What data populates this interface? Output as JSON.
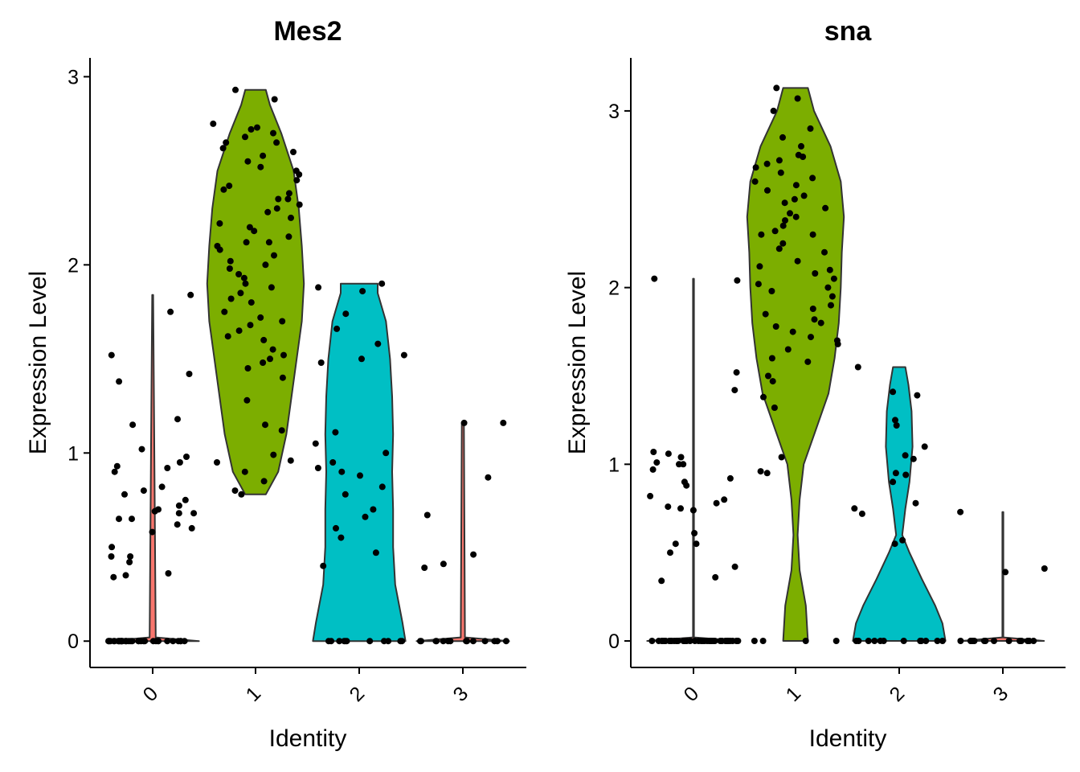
{
  "chart_data": [
    {
      "type": "violin",
      "title": "Mes2",
      "xlabel": "Identity",
      "ylabel": "Expression Level",
      "categories": [
        "0",
        "1",
        "2",
        "3"
      ],
      "yticks": [
        "0",
        "1",
        "2",
        "3"
      ],
      "ylim": [
        -0.14,
        3.1
      ],
      "grid": false,
      "legend": "none",
      "colors": {
        "1": "#7CAE00",
        "2": "#00BFC4"
      },
      "violins": [
        {
          "category": "0",
          "max": 1.84,
          "profile": [
            [
              0.0,
              0.45
            ],
            [
              0.02,
              0.03
            ],
            [
              1.84,
              0.005
            ]
          ]
        },
        {
          "category": "1",
          "max": 2.93,
          "profile": [
            [
              0.78,
              0.1
            ],
            [
              0.9,
              0.22
            ],
            [
              1.1,
              0.3
            ],
            [
              1.3,
              0.35
            ],
            [
              1.5,
              0.4
            ],
            [
              1.7,
              0.45
            ],
            [
              1.9,
              0.47
            ],
            [
              2.1,
              0.45
            ],
            [
              2.3,
              0.42
            ],
            [
              2.5,
              0.37
            ],
            [
              2.7,
              0.25
            ],
            [
              2.85,
              0.14
            ],
            [
              2.93,
              0.1
            ]
          ]
        },
        {
          "category": "2",
          "max": 1.9,
          "profile": [
            [
              0.0,
              0.45
            ],
            [
              0.1,
              0.42
            ],
            [
              0.3,
              0.35
            ],
            [
              0.5,
              0.33
            ],
            [
              0.7,
              0.33
            ],
            [
              0.9,
              0.32
            ],
            [
              1.1,
              0.33
            ],
            [
              1.3,
              0.32
            ],
            [
              1.5,
              0.3
            ],
            [
              1.7,
              0.26
            ],
            [
              1.85,
              0.18
            ],
            [
              1.9,
              0.18
            ]
          ]
        },
        {
          "category": "3",
          "max": 1.16,
          "profile": [
            [
              0.0,
              0.45
            ],
            [
              0.02,
              0.02
            ],
            [
              1.16,
              0.01
            ]
          ]
        }
      ],
      "points": [
        {
          "category": "0",
          "values": [
            0,
            0,
            0,
            0,
            0,
            0,
            0,
            0,
            0,
            0,
            0,
            0,
            0,
            0,
            0,
            0,
            0,
            0,
            0,
            0,
            0,
            0,
            0,
            0,
            0,
            0,
            0,
            0,
            0,
            0,
            0,
            0,
            0,
            0,
            0,
            0,
            1.75,
            1.42,
            1.38,
            1.18,
            1.15,
            1.02,
            0.98,
            0.95,
            0.92,
            0.9,
            0.82,
            0.8,
            0.78,
            0.75,
            0.72,
            0.7,
            0.68,
            0.65,
            0.6,
            0.58,
            0.45,
            0.42,
            0.36,
            0.34,
            1.84,
            1.52,
            0.93,
            0.69,
            0.68,
            0.65,
            0.62,
            0.5,
            0.45,
            0.35
          ]
        },
        {
          "category": "1",
          "values": [
            2.93,
            2.88,
            2.75,
            2.73,
            2.7,
            2.68,
            2.65,
            2.6,
            2.55,
            2.52,
            2.48,
            2.45,
            2.42,
            2.38,
            2.35,
            2.32,
            2.28,
            2.25,
            2.2,
            2.15,
            2.12,
            2.1,
            2.08,
            2.05,
            2.02,
            1.98,
            1.95,
            1.9,
            1.88,
            1.85,
            1.8,
            1.75,
            1.72,
            1.68,
            1.65,
            1.6,
            1.55,
            1.5,
            1.45,
            1.4,
            1.28,
            1.15,
            1.12,
            0.99,
            0.96,
            0.95,
            0.9,
            0.85,
            0.8,
            0.78,
            2.62,
            2.58,
            2.4,
            2.3,
            2.18,
            1.93,
            1.7,
            1.62,
            1.52,
            1.48,
            2.72,
            2.5,
            2.22,
            2.0,
            1.82,
            2.65,
            2.35,
            2.12
          ]
        },
        {
          "category": "2",
          "values": [
            0,
            0,
            0,
            0,
            0,
            0,
            0,
            0,
            0,
            0,
            0,
            1.9,
            1.88,
            1.86,
            1.74,
            1.66,
            1.58,
            1.52,
            1.5,
            1.48,
            1.11,
            1.05,
            1.0,
            0.95,
            0.92,
            0.9,
            0.88,
            0.82,
            0.78,
            0.7,
            0.66,
            0.6,
            0.55,
            0.47,
            0.4
          ]
        },
        {
          "category": "3",
          "values": [
            0,
            0,
            0,
            0,
            0,
            0,
            0,
            0,
            0,
            0,
            0,
            0,
            0,
            0,
            1.16,
            1.16,
            0.87,
            0.67,
            0.46,
            0.41,
            0.39
          ]
        }
      ]
    },
    {
      "type": "violin",
      "title": "sna",
      "xlabel": "Identity",
      "ylabel": "Expression Level",
      "categories": [
        "0",
        "1",
        "2",
        "3"
      ],
      "yticks": [
        "0",
        "1",
        "2",
        "3"
      ],
      "ylim": [
        -0.15,
        3.3
      ],
      "grid": false,
      "legend": "none",
      "colors": {
        "1": "#7CAE00",
        "2": "#00BFC4"
      },
      "violins": [
        {
          "category": "0",
          "max": 2.05,
          "profile": [
            [
              0.0,
              0.45
            ],
            [
              0.02,
              0.005
            ],
            [
              2.05,
              0.005
            ]
          ]
        },
        {
          "category": "1",
          "max": 3.13,
          "profile": [
            [
              0.0,
              0.12
            ],
            [
              0.2,
              0.1
            ],
            [
              0.4,
              0.04
            ],
            [
              0.6,
              0.02
            ],
            [
              0.8,
              0.04
            ],
            [
              1.0,
              0.08
            ],
            [
              1.2,
              0.2
            ],
            [
              1.4,
              0.32
            ],
            [
              1.6,
              0.38
            ],
            [
              1.8,
              0.42
            ],
            [
              2.0,
              0.44
            ],
            [
              2.2,
              0.45
            ],
            [
              2.4,
              0.47
            ],
            [
              2.6,
              0.44
            ],
            [
              2.8,
              0.34
            ],
            [
              3.0,
              0.18
            ],
            [
              3.13,
              0.12
            ]
          ]
        },
        {
          "category": "2",
          "max": 1.55,
          "profile": [
            [
              0.0,
              0.45
            ],
            [
              0.1,
              0.42
            ],
            [
              0.2,
              0.35
            ],
            [
              0.35,
              0.22
            ],
            [
              0.5,
              0.1
            ],
            [
              0.6,
              0.03
            ],
            [
              0.75,
              0.06
            ],
            [
              0.9,
              0.1
            ],
            [
              1.1,
              0.13
            ],
            [
              1.3,
              0.12
            ],
            [
              1.45,
              0.09
            ],
            [
              1.55,
              0.06
            ]
          ]
        },
        {
          "category": "3",
          "max": 0.73,
          "profile": [
            [
              0.0,
              0.4
            ],
            [
              0.02,
              0.005
            ],
            [
              0.73,
              0.005
            ]
          ]
        }
      ],
      "points": [
        {
          "category": "0",
          "values": [
            0,
            0,
            0,
            0,
            0,
            0,
            0,
            0,
            0,
            0,
            0,
            0,
            0,
            0,
            0,
            0,
            0,
            0,
            0,
            0,
            0,
            0,
            0,
            0,
            0,
            0,
            0,
            0,
            0,
            0,
            0,
            0,
            0,
            0,
            0,
            0,
            0,
            0,
            0,
            0,
            2.04,
            1.42,
            1.06,
            1.07,
            1.0,
            0.97,
            0.92,
            0.9,
            0.88,
            0.8,
            0.78,
            0.76,
            0.75,
            0.74,
            0.61,
            0.5,
            0.42,
            0.36,
            0.34,
            2.05,
            1.52,
            1.04,
            1.01,
            1.0,
            0.82,
            0.55,
            0.55
          ]
        },
        {
          "category": "1",
          "values": [
            3.13,
            3.07,
            3.0,
            2.9,
            2.85,
            2.8,
            2.75,
            2.72,
            2.7,
            2.65,
            2.6,
            2.55,
            2.5,
            2.48,
            2.45,
            2.42,
            2.38,
            2.35,
            2.3,
            2.25,
            2.2,
            2.15,
            2.1,
            2.05,
            2.0,
            1.95,
            1.9,
            1.85,
            1.8,
            1.75,
            1.72,
            1.7,
            1.65,
            1.6,
            1.58,
            1.5,
            1.47,
            1.38,
            1.32,
            1.04,
            0.96,
            0.95,
            0.0,
            0.0,
            0.0,
            0.0,
            2.62,
            2.52,
            2.4,
            2.22,
            2.12,
            1.98,
            1.82,
            1.68,
            2.68,
            2.3,
            2.08,
            1.88,
            1.78,
            2.74,
            2.58,
            2.32,
            2.02
          ]
        },
        {
          "category": "2",
          "values": [
            0,
            0,
            0,
            0,
            0,
            0,
            0,
            0,
            0,
            0,
            0,
            0,
            0,
            1.55,
            1.41,
            1.39,
            1.25,
            1.22,
            1.1,
            1.05,
            1.03,
            0.95,
            0.94,
            0.9,
            0.78,
            0.75,
            0.72,
            0.57,
            0.55
          ]
        },
        {
          "category": "3",
          "values": [
            0,
            0,
            0,
            0,
            0,
            0,
            0,
            0,
            0,
            0,
            0,
            0,
            0,
            0,
            0.73,
            0.41,
            0.39
          ]
        }
      ]
    }
  ]
}
